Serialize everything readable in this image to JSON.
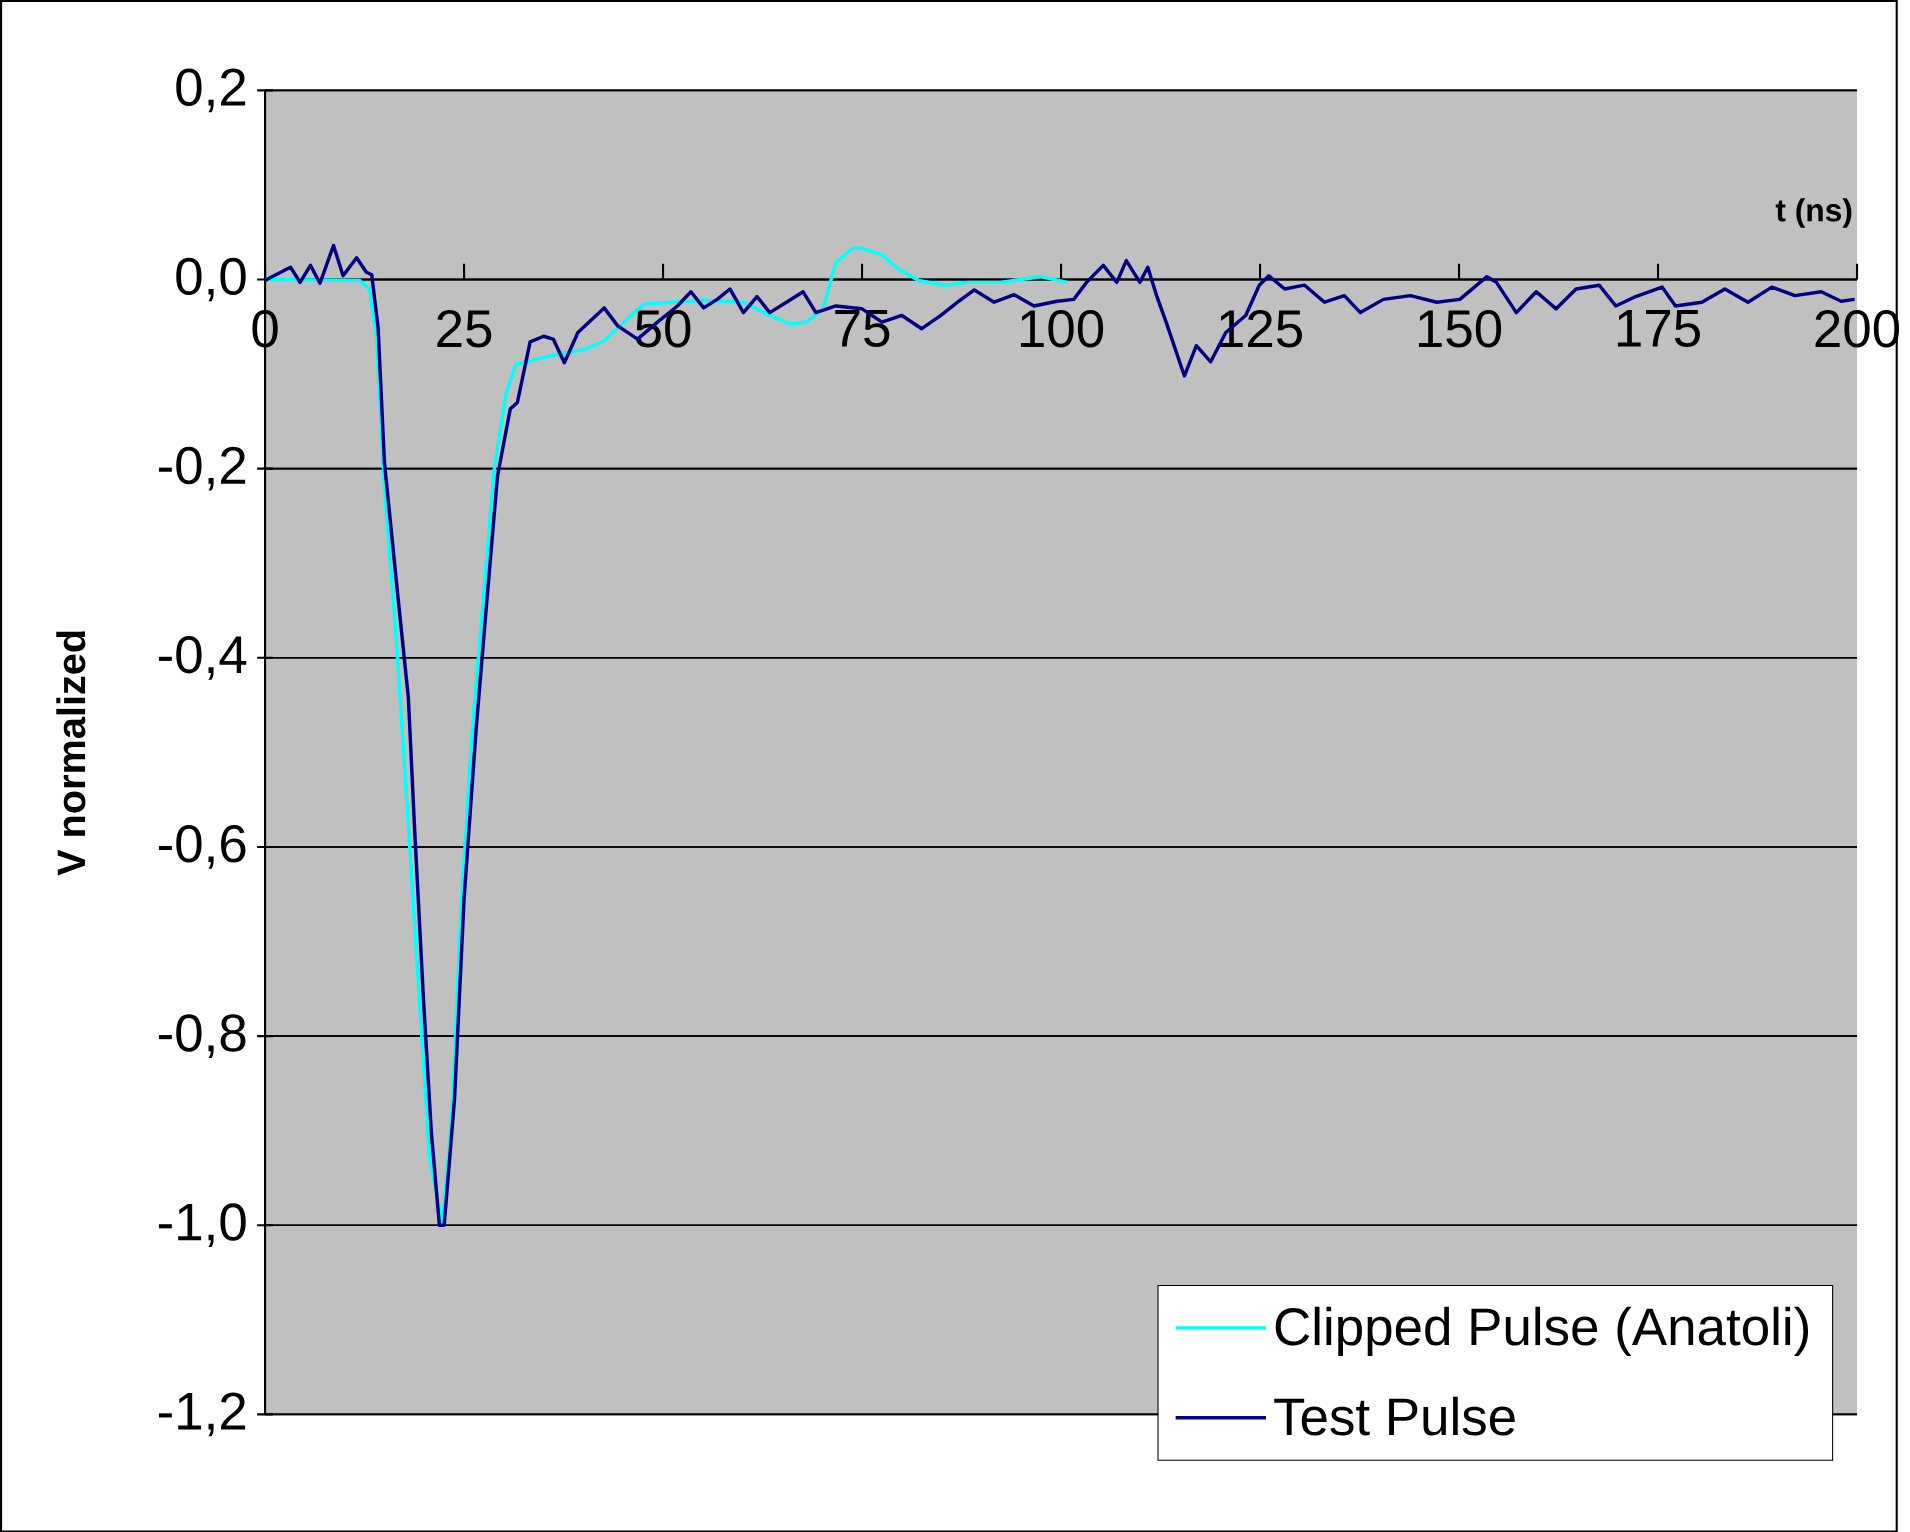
{
  "chart_data": {
    "type": "line",
    "xlabel": "t (ns)",
    "ylabel": "V normalized",
    "xlim": [
      0,
      200
    ],
    "ylim": [
      -1.2,
      0.2
    ],
    "xticks": [
      0,
      25,
      50,
      75,
      100,
      125,
      150,
      175,
      200
    ],
    "yticks": [
      {
        "value": 0.2,
        "label": "0,2"
      },
      {
        "value": 0.0,
        "label": "0,0"
      },
      {
        "value": -0.2,
        "label": "-0,2"
      },
      {
        "value": -0.4,
        "label": "-0,4"
      },
      {
        "value": -0.6,
        "label": "-0,6"
      },
      {
        "value": -0.8,
        "label": "-0,8"
      },
      {
        "value": -1.0,
        "label": "-1,0"
      },
      {
        "value": -1.2,
        "label": "-1,2"
      }
    ],
    "grid": "y",
    "legend": "bottom right",
    "marker": "none",
    "line_style": "solid",
    "series": [
      {
        "name": "Clipped Pulse (Anatoli)",
        "color": "#00ffff",
        "x": [
          0,
          11.9,
          13.1,
          14.0,
          15.0,
          16.4,
          17.8,
          19.3,
          20.7,
          22.3,
          23.5,
          24.6,
          26.0,
          27.5,
          28.8,
          30.3,
          31.5,
          34.3,
          36.8,
          40.1,
          42.6,
          45.1,
          47.6,
          51.0,
          55.1,
          60.1,
          62.6,
          65.9,
          68.0,
          70.1,
          71.7,
          73.8,
          75.0,
          77.5,
          79.6,
          82.1,
          85.4,
          88.3,
          92.4,
          97.4,
          100.8
        ],
        "values": [
          0,
          -0.001,
          -0.01,
          -0.06,
          -0.22,
          -0.37,
          -0.55,
          -0.75,
          -0.93,
          -1.0,
          -0.88,
          -0.67,
          -0.48,
          -0.33,
          -0.2,
          -0.12,
          -0.09,
          -0.084,
          -0.079,
          -0.074,
          -0.065,
          -0.045,
          -0.026,
          -0.024,
          -0.022,
          -0.024,
          -0.035,
          -0.047,
          -0.045,
          -0.031,
          0.018,
          0.033,
          0.033,
          0.026,
          0.011,
          -0.001,
          -0.006,
          -0.003,
          -0.003,
          0.003,
          -0.003
        ]
      },
      {
        "name": "Test Pulse",
        "color": "#000080",
        "x": [
          0,
          1.1,
          3.2,
          4.4,
          5.7,
          6.9,
          8.6,
          9.8,
          11.5,
          12.7,
          13.4,
          14.2,
          15.0,
          16.7,
          18.0,
          18.8,
          19.9,
          20.9,
          21.9,
          22.5,
          23.8,
          25.0,
          26.5,
          27.9,
          29.2,
          30.8,
          31.7,
          33.3,
          35.0,
          36.2,
          37.6,
          39.3,
          42.6,
          44.3,
          46.8,
          49.3,
          51.8,
          53.5,
          55.1,
          56.8,
          58.4,
          60.1,
          61.8,
          63.4,
          65.5,
          67.6,
          69.2,
          71.7,
          75.0,
          77.5,
          80.0,
          82.5,
          84.9,
          87.0,
          89.1,
          91.6,
          94.1,
          96.6,
          99.5,
          101.6,
          103.2,
          105.3,
          107.0,
          108.2,
          109.9,
          110.9,
          112.0,
          113.2,
          115.5,
          117.0,
          118.8,
          120.7,
          123.2,
          124.9,
          126.1,
          128.1,
          130.6,
          133.1,
          135.6,
          137.6,
          140.5,
          143.9,
          147.2,
          150.1,
          153.5,
          154.7,
          157.2,
          159.7,
          162.2,
          164.7,
          167.6,
          169.7,
          172.2,
          175.5,
          177.2,
          180.5,
          183.4,
          186.3,
          189.3,
          192.2,
          195.5,
          198.0,
          199.7
        ],
        "values": [
          -0.001,
          0.004,
          0.013,
          -0.003,
          0.015,
          -0.004,
          0.036,
          0.004,
          0.023,
          0.008,
          0.005,
          -0.051,
          -0.194,
          -0.336,
          -0.442,
          -0.583,
          -0.761,
          -0.903,
          -1.0,
          -1.0,
          -0.867,
          -0.655,
          -0.477,
          -0.336,
          -0.208,
          -0.137,
          -0.13,
          -0.066,
          -0.06,
          -0.063,
          -0.088,
          -0.056,
          -0.03,
          -0.049,
          -0.063,
          -0.045,
          -0.028,
          -0.013,
          -0.03,
          -0.021,
          -0.01,
          -0.035,
          -0.018,
          -0.035,
          -0.024,
          -0.013,
          -0.035,
          -0.028,
          -0.031,
          -0.045,
          -0.038,
          -0.052,
          -0.038,
          -0.024,
          -0.011,
          -0.024,
          -0.016,
          -0.028,
          -0.023,
          -0.021,
          -0.003,
          0.015,
          -0.003,
          0.02,
          -0.003,
          0.013,
          -0.017,
          -0.045,
          -0.102,
          -0.07,
          -0.087,
          -0.056,
          -0.038,
          -0.006,
          0.004,
          -0.01,
          -0.006,
          -0.024,
          -0.017,
          -0.035,
          -0.021,
          -0.017,
          -0.024,
          -0.021,
          0.003,
          -0.003,
          -0.035,
          -0.013,
          -0.031,
          -0.01,
          -0.006,
          -0.028,
          -0.018,
          -0.008,
          -0.028,
          -0.024,
          -0.01,
          -0.024,
          -0.008,
          -0.017,
          -0.013,
          -0.023,
          -0.021
        ]
      }
    ]
  }
}
